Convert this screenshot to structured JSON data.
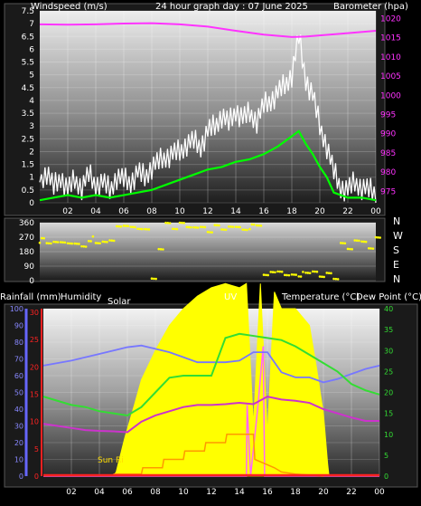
{
  "header": {
    "left_label": "Windspeed (m/s)",
    "center_title": "24 hour graph day : 07 June 2025",
    "right_label": "Barometer (hpa)"
  },
  "direction_labels": [
    "N",
    "W",
    "S",
    "E",
    "N"
  ],
  "bottom_header": {
    "rainfall": "Rainfall (mm)",
    "humidity": "Humidity",
    "solar": "Solar",
    "uv": "UV",
    "temperature": "Temperature (°C)",
    "dewpoint": "Dew Point (°C)"
  },
  "annotations": {
    "sunrise": "Sun Ri"
  },
  "colors": {
    "background": "#000000",
    "windspeed_gust": "#ffffff",
    "windspeed_avg": "#00ff00",
    "barometer": "#ff33ff",
    "wind_direction": "#ffff00",
    "solar": "#ffff00",
    "uv": "#ff66ff",
    "temperature": "#33dd33",
    "dewpoint": "#cc33cc",
    "humidity": "#7777ff",
    "rainfall": "#ff2222",
    "sun_hours": "#ff9900"
  },
  "chart_data": [
    {
      "type": "line",
      "title": "24 hour graph day : 07 June 2025",
      "xlabel": "",
      "x_ticks": [
        "02",
        "04",
        "06",
        "08",
        "10",
        "12",
        "14",
        "16",
        "18",
        "20",
        "22",
        "00"
      ],
      "xlim": [
        0,
        24
      ],
      "ylabel_left": "Windspeed (m/s)",
      "ylim_left": [
        0,
        7.5
      ],
      "yticks_left": [
        "0",
        "0.5",
        "1",
        "1.5",
        "2",
        "2.5",
        "3",
        "3.5",
        "4",
        "4.5",
        "5",
        "5.5",
        "6",
        "6.5",
        "7",
        "7.5"
      ],
      "ylabel_right": "Barometer (hpa)",
      "ylim_right": [
        972,
        1022
      ],
      "yticks_right": [
        "975",
        "980",
        "985",
        "990",
        "995",
        "1000",
        "1005",
        "1010",
        "1015",
        "1020"
      ],
      "grid": true,
      "series": [
        {
          "name": "Windspeed (m/s)",
          "axis": "left",
          "x": [
            0,
            0.5,
            1,
            1.5,
            2,
            2.5,
            3,
            3.5,
            4,
            4.5,
            5,
            5.5,
            6,
            6.5,
            7,
            7.5,
            8,
            8.5,
            9,
            9.5,
            10,
            10.5,
            11,
            11.5,
            12,
            12.5,
            13,
            13.5,
            14,
            14.5,
            15,
            15.5,
            16,
            16.5,
            17,
            17.5,
            18,
            18.5,
            19,
            19.5,
            20,
            20.5,
            21,
            21.5,
            22,
            22.5,
            23,
            23.5,
            24
          ],
          "values": [
            0.8,
            1.2,
            0.6,
            1.0,
            0.5,
            0.9,
            0.6,
            1.1,
            0.7,
            0.8,
            0.5,
            1.0,
            0.9,
            0.8,
            1.2,
            1.0,
            1.4,
            1.6,
            1.8,
            1.9,
            2.0,
            2.3,
            2.4,
            2.2,
            2.8,
            3.0,
            3.4,
            3.1,
            3.6,
            3.3,
            3.5,
            3.2,
            3.8,
            4.0,
            4.3,
            4.6,
            5.0,
            6.5,
            4.8,
            4.2,
            3.0,
            2.2,
            1.2,
            0.6,
            0.5,
            0.8,
            0.6,
            0.5,
            0.4
          ]
        },
        {
          "name": "Average wind",
          "axis": "left",
          "x": [
            0,
            1,
            2,
            3,
            4,
            5,
            6,
            7,
            8,
            9,
            10,
            11,
            12,
            13,
            14,
            15,
            16,
            17,
            18,
            18.5,
            19,
            19.5,
            20,
            20.5,
            21,
            22,
            23,
            24
          ],
          "values": [
            0.1,
            0.2,
            0.3,
            0.2,
            0.3,
            0.2,
            0.3,
            0.4,
            0.5,
            0.7,
            0.9,
            1.1,
            1.3,
            1.4,
            1.6,
            1.7,
            1.9,
            2.2,
            2.6,
            2.8,
            2.3,
            1.9,
            1.4,
            1.0,
            0.4,
            0.2,
            0.2,
            0.1
          ]
        },
        {
          "name": "Barometer (hpa)",
          "axis": "right",
          "x": [
            0,
            2,
            4,
            6,
            8,
            10,
            12,
            14,
            16,
            18,
            19,
            20,
            22,
            24
          ],
          "values": [
            1018.5,
            1018.4,
            1018.5,
            1018.7,
            1018.8,
            1018.5,
            1017.9,
            1016.8,
            1015.8,
            1015.2,
            1015.3,
            1015.6,
            1016.2,
            1016.8
          ]
        }
      ]
    },
    {
      "type": "scatter",
      "title": "",
      "xlim": [
        0,
        24
      ],
      "ylim": [
        0,
        360
      ],
      "yticks": [
        "0",
        "90",
        "180",
        "270",
        "360"
      ],
      "series": [
        {
          "name": "Wind direction",
          "x": [
            0,
            0.5,
            1,
            1.5,
            2,
            2.5,
            3,
            3.5,
            4,
            4.5,
            5,
            5.5,
            6,
            6.5,
            7,
            7.5,
            8,
            8.5,
            9,
            9.5,
            10,
            10.5,
            11,
            11.5,
            12,
            12.5,
            13,
            13.5,
            14,
            14.5,
            15,
            15.5,
            16,
            16.5,
            17,
            17.5,
            18,
            18.5,
            19,
            19.5,
            20,
            20.5,
            21,
            21.5,
            22,
            22.5,
            23,
            23.5,
            24
          ],
          "values": [
            250,
            235,
            230,
            245,
            225,
            240,
            210,
            260,
            235,
            230,
            255,
            330,
            350,
            330,
            335,
            320,
            0,
            200,
            350,
            330,
            355,
            345,
            330,
            320,
            305,
            335,
            325,
            330,
            345,
            315,
            335,
            345,
            25,
            60,
            50,
            45,
            35,
            40,
            50,
            45,
            30,
            40,
            20,
            230,
            210,
            250,
            230,
            205,
            260
          ]
        }
      ]
    },
    {
      "type": "line",
      "title": "",
      "x_ticks": [
        "02",
        "04",
        "06",
        "08",
        "10",
        "12",
        "14",
        "16",
        "18",
        "20",
        "22",
        "00"
      ],
      "xlim": [
        0,
        24
      ],
      "ylim_left": [
        0,
        100
      ],
      "yticks_humidity": [
        "0",
        "10",
        "20",
        "30",
        "40",
        "50",
        "60",
        "70",
        "80",
        "90",
        "100"
      ],
      "yticks_rain": [
        "0",
        "5",
        "10",
        "15",
        "20",
        "25",
        "30"
      ],
      "ylim_right": [
        0,
        40
      ],
      "yticks_right": [
        "0",
        "5",
        "10",
        "15",
        "20",
        "25",
        "30",
        "35",
        "40"
      ],
      "grid": true,
      "series": [
        {
          "name": "Humidity",
          "axis": "humidity",
          "x": [
            0,
            2,
            4,
            6,
            7,
            8,
            9,
            10,
            11,
            12,
            13,
            14,
            15,
            16,
            17,
            18,
            19,
            20,
            21,
            22,
            23,
            24
          ],
          "values": [
            66,
            69,
            73,
            77,
            78,
            76,
            74,
            71,
            68,
            68,
            68,
            69,
            74,
            74,
            62,
            59,
            59,
            56,
            58,
            61,
            64,
            66
          ]
        },
        {
          "name": "Temperature (°C)",
          "axis": "right",
          "x": [
            0,
            1,
            2,
            3,
            4,
            5,
            6,
            7,
            8,
            9,
            10,
            11,
            12,
            13,
            14,
            15,
            16,
            17,
            18,
            19,
            20,
            21,
            22,
            23,
            24
          ],
          "values": [
            19,
            18,
            17,
            16.5,
            15.5,
            15,
            14.5,
            16.5,
            20,
            23.5,
            24,
            24,
            24,
            33,
            34,
            33.5,
            33,
            32.5,
            31,
            29,
            27,
            25,
            22,
            20.5,
            19.5
          ]
        },
        {
          "name": "Dew Point (°C)",
          "axis": "right",
          "x": [
            0,
            1,
            2,
            3,
            4,
            5,
            6,
            7,
            8,
            9,
            10,
            11,
            12,
            13,
            14,
            15,
            16,
            17,
            18,
            19,
            20,
            21,
            22,
            23,
            24
          ],
          "values": [
            12.5,
            12,
            11.5,
            11,
            10.8,
            10.7,
            10.5,
            13,
            14.5,
            15.5,
            16.5,
            17,
            17,
            17.2,
            17.5,
            17.2,
            19,
            18.3,
            18,
            17.5,
            16,
            15,
            14,
            13.2,
            13.2
          ]
        },
        {
          "name": "Solar",
          "axis": "area",
          "x": [
            0,
            5,
            5.2,
            5.8,
            6.5,
            7,
            8,
            9,
            10,
            11,
            12,
            13,
            14,
            14.5,
            15,
            15.5,
            16,
            16.5,
            17,
            18,
            19,
            19.5,
            20,
            20.3,
            20.4,
            24
          ],
          "values": [
            0,
            0,
            1,
            9,
            17,
            23,
            30,
            36,
            40,
            43,
            45,
            46,
            45,
            46,
            12,
            46,
            10,
            44,
            40,
            40,
            36,
            26,
            15,
            3,
            0,
            0
          ]
        },
        {
          "name": "UV",
          "axis": "right",
          "x": [
            0,
            14.5,
            14.55,
            14.8,
            15.3,
            15.7,
            15.8,
            24
          ],
          "values": [
            0,
            0,
            17,
            0,
            16,
            31,
            0,
            0
          ]
        },
        {
          "name": "Rainfall (mm)",
          "axis": "rain",
          "x": [
            0,
            24
          ],
          "values": [
            0,
            0
          ]
        },
        {
          "name": "Sunshine",
          "axis": "right",
          "x": [
            5,
            7,
            7.1,
            8.5,
            8.6,
            10,
            10.1,
            11.5,
            11.6,
            13,
            13.1,
            15,
            15.1,
            16.5,
            17,
            18,
            20
          ],
          "values": [
            0.5,
            0.5,
            2,
            2,
            4,
            4,
            6,
            6,
            8,
            8,
            10,
            10,
            4,
            2,
            1,
            0.5,
            0
          ]
        }
      ],
      "annotations": [
        "Sun Ri"
      ]
    }
  ]
}
